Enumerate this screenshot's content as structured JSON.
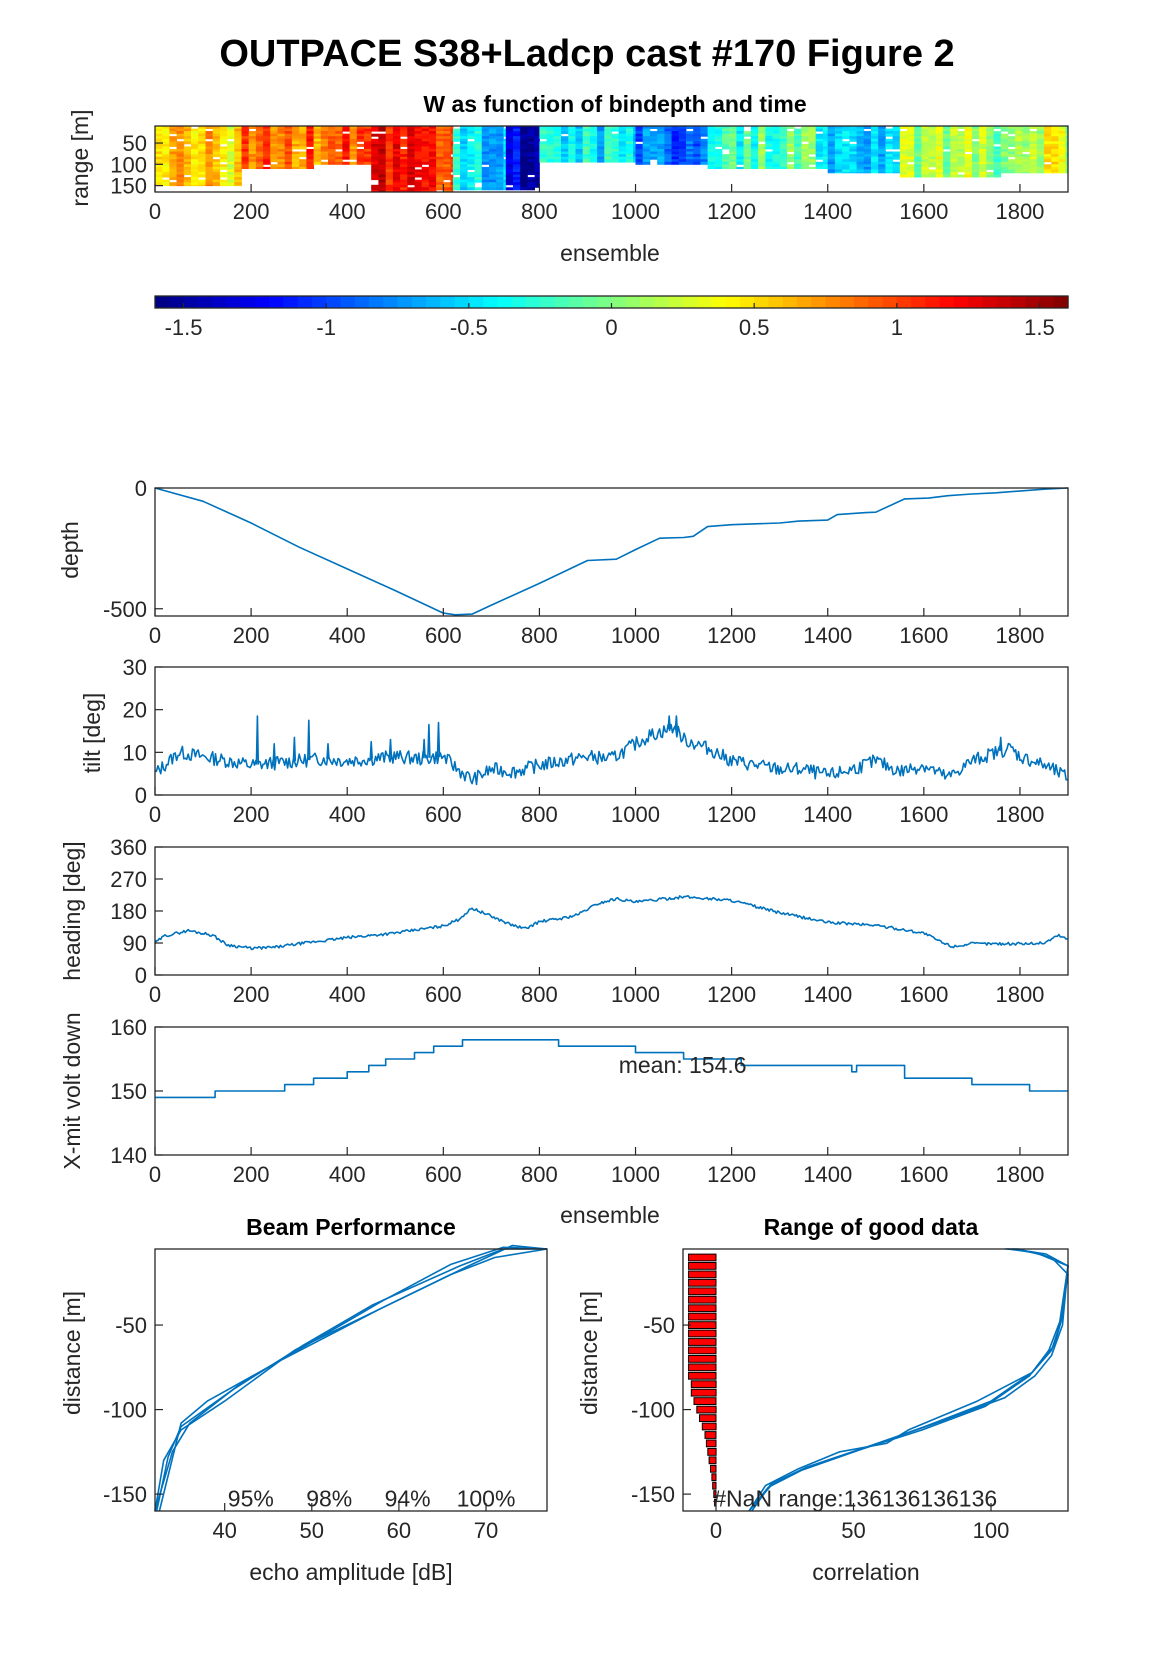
{
  "figure_title": "OUTPACE S38+Ladcp cast #170 Figure 2",
  "chart_data": [
    {
      "id": "w_map",
      "type": "heatmap",
      "title": "W as function of bindepth and time",
      "xlabel": "ensemble",
      "ylabel": "range [m]",
      "xlim": [
        0,
        1900
      ],
      "ylim": [
        10,
        165
      ],
      "xticks": [
        0,
        200,
        400,
        600,
        800,
        1000,
        1200,
        1400,
        1600,
        1800
      ],
      "yticks": [
        50,
        100,
        150
      ],
      "clim": [
        -1.6,
        1.6
      ],
      "colorbar_ticks": [
        -1.5,
        -1,
        -0.5,
        0,
        0.5,
        1,
        1.5
      ],
      "colorbar_tick_labels": [
        "-1.5",
        "-1",
        "-0.5",
        "0",
        "0.5",
        "1",
        "1.5"
      ],
      "column_width": 15,
      "segments": [
        {
          "x": [
            0,
            180
          ],
          "w": 0.5,
          "depth_max": 150
        },
        {
          "x": [
            180,
            330
          ],
          "w": 0.95,
          "depth_max": 110
        },
        {
          "x": [
            330,
            450
          ],
          "w": 0.9,
          "depth_max": 100
        },
        {
          "x": [
            450,
            620
          ],
          "w": 1.1,
          "depth_max": 165
        },
        {
          "x": [
            620,
            730
          ],
          "w": -0.55,
          "depth_max": 160
        },
        {
          "x": [
            730,
            800
          ],
          "w": -1.35,
          "depth_max": 160
        },
        {
          "x": [
            800,
            1000
          ],
          "w": -0.45,
          "depth_max": 95
        },
        {
          "x": [
            1000,
            1150
          ],
          "w": -0.9,
          "depth_max": 100
        },
        {
          "x": [
            1150,
            1400
          ],
          "w": -0.15,
          "depth_max": 110
        },
        {
          "x": [
            1400,
            1550
          ],
          "w": -0.55,
          "depth_max": 120
        },
        {
          "x": [
            1550,
            1760
          ],
          "w": 0.1,
          "depth_max": 130
        },
        {
          "x": [
            1760,
            1900
          ],
          "w": 0.25,
          "depth_max": 120
        }
      ]
    },
    {
      "id": "depth",
      "type": "line",
      "ylabel": "depth",
      "xlim": [
        0,
        1900
      ],
      "ylim": [
        -530,
        0
      ],
      "xticks": [
        0,
        200,
        400,
        600,
        800,
        1000,
        1200,
        1400,
        1600,
        1800
      ],
      "yticks": [
        0,
        -500
      ],
      "x": [
        0,
        100,
        200,
        300,
        400,
        500,
        600,
        625,
        660,
        700,
        800,
        900,
        960,
        1000,
        1050,
        1100,
        1120,
        1150,
        1200,
        1300,
        1340,
        1400,
        1420,
        1480,
        1500,
        1560,
        1610,
        1650,
        1700,
        1750,
        1850,
        1900
      ],
      "y": [
        0,
        -55,
        -145,
        -245,
        -335,
        -425,
        -518,
        -525,
        -522,
        -485,
        -395,
        -300,
        -295,
        -255,
        -208,
        -205,
        -200,
        -160,
        -152,
        -145,
        -137,
        -133,
        -110,
        -102,
        -100,
        -45,
        -42,
        -32,
        -25,
        -20,
        -5,
        0
      ]
    },
    {
      "id": "tilt",
      "type": "line",
      "ylabel": "tilt [deg]",
      "xlim": [
        0,
        1900
      ],
      "ylim": [
        0,
        30
      ],
      "xticks": [
        0,
        200,
        400,
        600,
        800,
        1000,
        1200,
        1400,
        1600,
        1800
      ],
      "yticks": [
        0,
        10,
        20,
        30
      ],
      "x": [
        0,
        50,
        100,
        150,
        200,
        250,
        300,
        350,
        400,
        450,
        500,
        550,
        600,
        630,
        660,
        700,
        750,
        800,
        850,
        900,
        950,
        1000,
        1030,
        1060,
        1080,
        1100,
        1150,
        1200,
        1250,
        1300,
        1350,
        1400,
        1450,
        1500,
        1550,
        1600,
        1650,
        1700,
        1750,
        1780,
        1800,
        1850,
        1900
      ],
      "y": [
        5,
        10,
        9,
        8,
        7,
        7.5,
        8,
        8.5,
        8,
        8.5,
        9,
        8.5,
        9,
        6,
        3.5,
        6,
        5.5,
        7,
        8,
        9,
        8.5,
        12,
        14,
        15,
        16,
        13,
        11,
        8,
        7,
        6,
        6,
        4.5,
        6,
        8,
        5.5,
        7,
        4,
        8,
        10,
        11,
        9,
        7,
        4
      ],
      "spikes": [
        {
          "x": 213,
          "y": 18.5
        },
        {
          "x": 248,
          "y": 12
        },
        {
          "x": 290,
          "y": 13.5
        },
        {
          "x": 320,
          "y": 17.5
        },
        {
          "x": 360,
          "y": 12
        },
        {
          "x": 450,
          "y": 12.5
        },
        {
          "x": 490,
          "y": 13
        },
        {
          "x": 560,
          "y": 13
        },
        {
          "x": 570,
          "y": 16.5
        },
        {
          "x": 590,
          "y": 17
        },
        {
          "x": 1070,
          "y": 18.5
        },
        {
          "x": 1085,
          "y": 18.5
        },
        {
          "x": 1760,
          "y": 13.5
        }
      ]
    },
    {
      "id": "heading",
      "type": "line",
      "ylabel": "heading [deg]",
      "xlim": [
        0,
        1900
      ],
      "ylim": [
        0,
        360
      ],
      "xticks": [
        0,
        200,
        400,
        600,
        800,
        1000,
        1200,
        1400,
        1600,
        1800
      ],
      "yticks": [
        0,
        90,
        180,
        270,
        360
      ],
      "x": [
        0,
        20,
        70,
        120,
        150,
        200,
        250,
        300,
        400,
        500,
        600,
        630,
        660,
        700,
        740,
        770,
        800,
        850,
        880,
        920,
        960,
        1000,
        1100,
        1200,
        1300,
        1400,
        1500,
        1600,
        1640,
        1660,
        1700,
        1800,
        1850,
        1880,
        1900
      ],
      "y": [
        90,
        110,
        125,
        112,
        85,
        75,
        78,
        88,
        105,
        118,
        138,
        155,
        188,
        165,
        142,
        130,
        150,
        160,
        170,
        200,
        215,
        205,
        220,
        210,
        175,
        148,
        140,
        118,
        90,
        80,
        88,
        88,
        90,
        112,
        100
      ]
    },
    {
      "id": "xmit_volt",
      "type": "line",
      "ylabel": "X-mit volt down",
      "xlabel": "ensemble",
      "xlim": [
        0,
        1900
      ],
      "ylim": [
        140,
        160
      ],
      "xticks": [
        0,
        200,
        400,
        600,
        800,
        1000,
        1200,
        1400,
        1600,
        1800
      ],
      "yticks": [
        140,
        150,
        160
      ],
      "annotation": "mean: 154.6",
      "annotation_pos": {
        "x": 965,
        "y": 152.8
      },
      "x": [
        0,
        125,
        125,
        270,
        270,
        330,
        330,
        400,
        400,
        445,
        445,
        480,
        480,
        540,
        540,
        580,
        580,
        640,
        640,
        840,
        840,
        1000,
        1000,
        1100,
        1100,
        1220,
        1220,
        1450,
        1450,
        1460,
        1460,
        1560,
        1560,
        1700,
        1700,
        1820,
        1820,
        1900
      ],
      "y": [
        149,
        149,
        150,
        150,
        151,
        151,
        152,
        152,
        153,
        153,
        154,
        154,
        155,
        155,
        156,
        156,
        157,
        157,
        158,
        158,
        157,
        157,
        156,
        156,
        155,
        155,
        154,
        154,
        153,
        153,
        154,
        154,
        152,
        152,
        151,
        151,
        150,
        150
      ]
    },
    {
      "id": "beam_performance",
      "type": "line",
      "title": "Beam Performance",
      "xlabel": "echo amplitude [dB]",
      "ylabel": "distance [m]",
      "xlim": [
        32,
        77
      ],
      "ylim": [
        -160,
        -5
      ],
      "xticks": [
        40,
        50,
        60,
        70
      ],
      "yticks": [
        -50,
        -100,
        -150
      ],
      "percent_labels": [
        "95%",
        "98%",
        "94%",
        "100%"
      ],
      "percent_label_x": [
        43,
        52,
        61,
        70
      ],
      "percent_label_y": -152,
      "series": [
        {
          "color": "#0072bd",
          "x": [
            32,
            33,
            35,
            40,
            48,
            58,
            68,
            73,
            77
          ],
          "y": [
            -160,
            -130,
            -112,
            -95,
            -65,
            -40,
            -15,
            -3,
            -5
          ]
        },
        {
          "color": "#d95319",
          "x": [
            32.2,
            33.5,
            35,
            41,
            49,
            57,
            67,
            72,
            77
          ],
          "y": [
            -160,
            -128,
            -110,
            -88,
            -62,
            -38,
            -15,
            -5,
            -5
          ]
        },
        {
          "color": "#edb120",
          "x": [
            32,
            34,
            36,
            42,
            50,
            58,
            66,
            72,
            77
          ],
          "y": [
            -160,
            -125,
            -108,
            -84,
            -60,
            -36,
            -14,
            -4,
            -5
          ]
        },
        {
          "color": "#7e2f8e",
          "x": [
            32.5,
            35,
            38,
            46,
            58,
            66,
            71,
            77
          ],
          "y": [
            -160,
            -108,
            -95,
            -72,
            -40,
            -20,
            -10,
            -5
          ]
        }
      ]
    },
    {
      "id": "range_good_data",
      "type": "line",
      "title": "Range of good data",
      "xlabel": "correlation",
      "ylabel": "distance [m]",
      "xlim": [
        -12,
        128
      ],
      "ylim": [
        -160,
        -5
      ],
      "xticks": [
        0,
        50,
        100
      ],
      "yticks": [
        -50,
        -100,
        -150
      ],
      "annotation": "#NaN range:136136136136",
      "annotation_pos": {
        "x": -1,
        "y": -152
      },
      "nan_bars": {
        "y": [
          -10,
          -15,
          -20,
          -25,
          -30,
          -35,
          -40,
          -45,
          -50,
          -55,
          -60,
          -65,
          -70,
          -75,
          -80,
          -85,
          -90,
          -95,
          -100,
          -105,
          -110,
          -115,
          -120,
          -125,
          -130,
          -135,
          -140,
          -145,
          -150,
          -155
        ],
        "value": [
          -10,
          -10,
          -10,
          -10,
          -10,
          -10,
          -10,
          -10,
          -10,
          -10,
          -10,
          -10,
          -10,
          -10,
          -10,
          -9,
          -9,
          -8,
          -7,
          -6,
          -5,
          -4,
          -3.5,
          -3,
          -2.5,
          -2,
          -1.5,
          -1.2,
          -0.8,
          -0.5
        ]
      },
      "series": [
        {
          "color": "#0072bd",
          "x": [
            12,
            18,
            30,
            45,
            62,
            70,
            95,
            115,
            122,
            125,
            128,
            122,
            110,
            105
          ],
          "y": [
            -160,
            -145,
            -135,
            -125,
            -120,
            -112,
            -95,
            -78,
            -65,
            -50,
            -20,
            -10,
            -5,
            -5
          ]
        },
        {
          "color": "#d95319",
          "x": [
            12,
            20,
            32,
            50,
            75,
            98,
            114,
            121,
            125,
            128,
            120,
            108
          ],
          "y": [
            -160,
            -145,
            -135,
            -125,
            -112,
            -98,
            -80,
            -65,
            -48,
            -15,
            -8,
            -5
          ]
        },
        {
          "color": "#edb120",
          "x": [
            12,
            19,
            31,
            52,
            76,
            100,
            115,
            123,
            126,
            128,
            118,
            108
          ],
          "y": [
            -160,
            -146,
            -136,
            -124,
            -110,
            -95,
            -78,
            -62,
            -45,
            -15,
            -8,
            -5
          ]
        },
        {
          "color": "#7e2f8e",
          "x": [
            13,
            20,
            33,
            55,
            80,
            105,
            116,
            122,
            126,
            128,
            116,
            106
          ],
          "y": [
            -160,
            -144,
            -134,
            -122,
            -108,
            -93,
            -80,
            -68,
            -50,
            -15,
            -7,
            -5
          ]
        }
      ]
    }
  ]
}
